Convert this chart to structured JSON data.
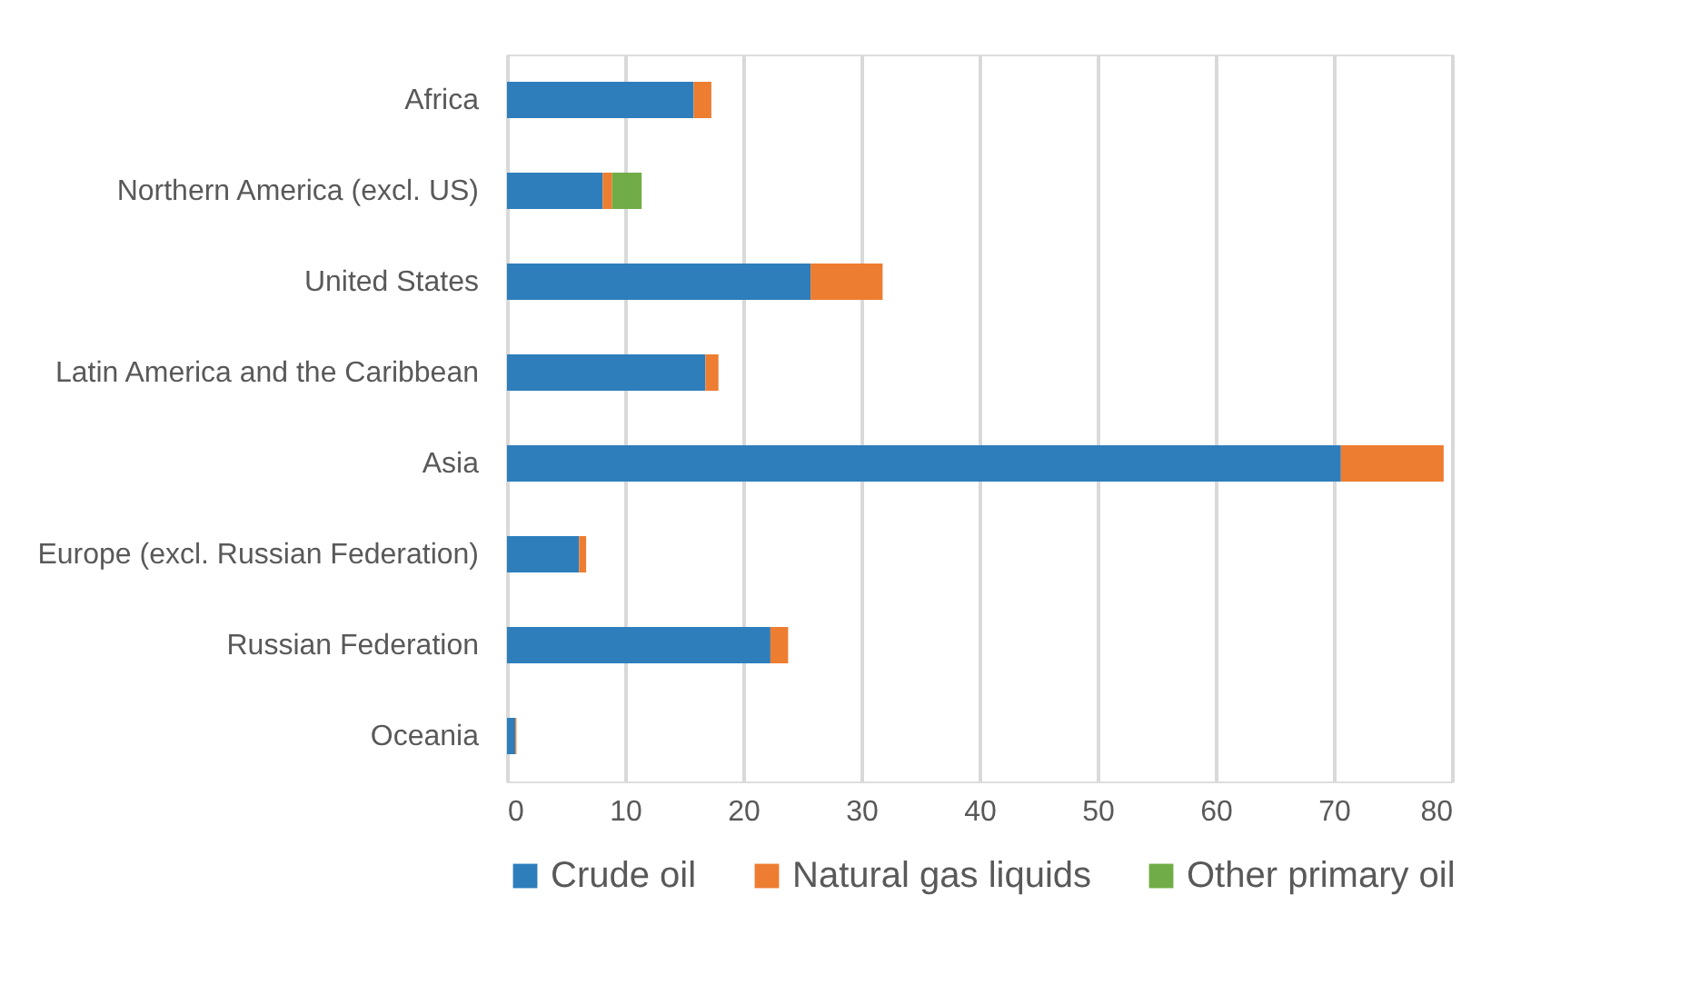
{
  "chart_data": {
    "type": "bar",
    "orientation": "horizontal",
    "stacked": true,
    "categories": [
      "Africa",
      "Northern America (excl. US)",
      "United States",
      "Latin America and the Caribbean",
      "Asia",
      "Europe (excl. Russian Federation)",
      "Russian Federation",
      "Oceania"
    ],
    "series": [
      {
        "name": "Crude oil",
        "color": "#2e7ebc",
        "values": [
          15.8,
          8.1,
          25.7,
          16.8,
          70.6,
          6.1,
          22.3,
          0.7
        ]
      },
      {
        "name": "Natural gas liquids",
        "color": "#ed7d31",
        "values": [
          1.5,
          0.8,
          6.1,
          1.1,
          8.7,
          0.6,
          1.5,
          0.1
        ]
      },
      {
        "name": "Other primary oil",
        "color": "#70ad47",
        "values": [
          null,
          2.5,
          null,
          null,
          null,
          null,
          null,
          null
        ]
      }
    ],
    "xlim": [
      0,
      80
    ],
    "xticks": [
      0,
      10,
      20,
      30,
      40,
      50,
      60,
      70,
      80
    ],
    "grid": "x",
    "legend": "bottom"
  }
}
